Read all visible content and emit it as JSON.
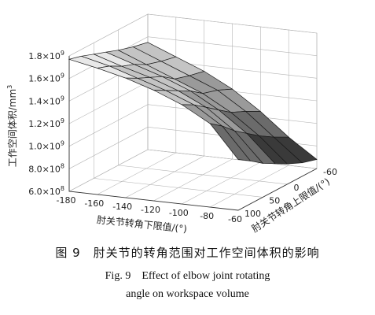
{
  "chart_data": {
    "type": "surface3d",
    "x_axis": {
      "label": "肘关节转角下限值/(°)",
      "ticks": [
        "-180",
        "-160",
        "-140",
        "-120",
        "-100",
        "-80",
        "-60"
      ],
      "range": [
        -180,
        -60
      ]
    },
    "y_axis": {
      "label": "肘关节转角上限值/(°)",
      "ticks": [
        "-60",
        "0",
        "50",
        "100"
      ],
      "range": [
        -60,
        100
      ]
    },
    "z_axis": {
      "label": "工作空间体积/mm",
      "label_superscript": "3",
      "ticks": [
        {
          "base": "6.0×10",
          "exp": "8"
        },
        {
          "base": "8.0×10",
          "exp": "8"
        },
        {
          "base": "1.0×10",
          "exp": "9"
        },
        {
          "base": "1.2×10",
          "exp": "9"
        },
        {
          "base": "1.4×10",
          "exp": "9"
        },
        {
          "base": "1.6×10",
          "exp": "9"
        },
        {
          "base": "1.8×10",
          "exp": "9"
        }
      ],
      "range": [
        600000000,
        1800000000
      ]
    },
    "grid": true,
    "x_values": [
      -180,
      -160,
      -140,
      -120,
      -100,
      -80,
      -60
    ],
    "y_values": [
      -60,
      -30,
      0,
      25,
      50,
      75,
      100
    ],
    "z_values": [
      [
        1550000000.0,
        1450000000.0,
        1350000000.0,
        1220000000.0,
        1050000000.0,
        850000000.0,
        680000000.0
      ],
      [
        1580000000.0,
        1480000000.0,
        1380000000.0,
        1280000000.0,
        1120000000.0,
        920000000.0,
        720000000.0
      ],
      [
        1620000000.0,
        1520000000.0,
        1420000000.0,
        1320000000.0,
        1180000000.0,
        1000000000.0,
        780000000.0
      ],
      [
        1660000000.0,
        1580000000.0,
        1500000000.0,
        1400000000.0,
        1260000000.0,
        1080000000.0,
        840000000.0
      ],
      [
        1700000000.0,
        1620000000.0,
        1550000000.0,
        1460000000.0,
        1340000000.0,
        1160000000.0,
        900000000.0
      ],
      [
        1740000000.0,
        1680000000.0,
        1600000000.0,
        1520000000.0,
        1420000000.0,
        1260000000.0,
        980000000.0
      ],
      [
        1770000000.0,
        1720000000.0,
        1660000000.0,
        1580000000.0,
        1480000000.0,
        1340000000.0,
        1050000000.0
      ]
    ],
    "colormap": [
      "#3a3a3a",
      "#6b6b6b",
      "#9a9a9a",
      "#c4c4c4",
      "#e8e8e8"
    ]
  },
  "caption": {
    "zh": "图 9　肘关节的转角范围对工作空间体积的影响",
    "en_line1": "Fig. 9　Effect of elbow joint rotating",
    "en_line2": "angle on workspace volume"
  }
}
